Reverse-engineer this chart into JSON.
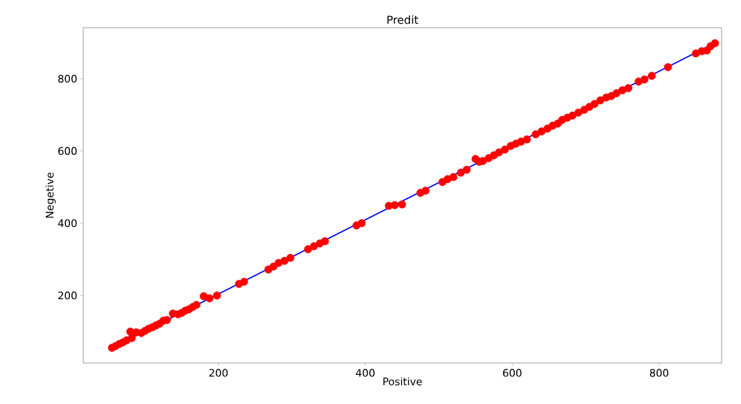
{
  "chart_data": {
    "type": "scatter",
    "title": "Predit",
    "xlabel": "Positive",
    "ylabel": "Negetive",
    "xlim": [
      16,
      885
    ],
    "ylim": [
      13,
      941
    ],
    "xticks": [
      200,
      400,
      600,
      800
    ],
    "yticks": [
      200,
      400,
      600,
      800
    ],
    "grid": false,
    "series": [
      {
        "marker": "circle",
        "color": "#ff0000",
        "x": [
          55,
          60,
          65,
          70,
          75,
          80,
          82,
          88,
          95,
          100,
          105,
          110,
          115,
          120,
          125,
          130,
          138,
          145,
          150,
          155,
          160,
          165,
          170,
          180,
          188,
          198,
          228,
          235,
          268,
          275,
          282,
          290,
          298,
          322,
          330,
          338,
          345,
          388,
          395,
          432,
          440,
          450,
          475,
          482,
          505,
          512,
          520,
          530,
          538,
          550,
          555,
          560,
          568,
          575,
          582,
          590,
          598,
          605,
          612,
          620,
          632,
          640,
          648,
          655,
          662,
          668,
          675,
          682,
          690,
          698,
          705,
          712,
          720,
          728,
          735,
          742,
          750,
          758,
          772,
          780,
          790,
          812,
          850,
          858,
          865,
          870,
          876
        ],
        "values": [
          55,
          60,
          66,
          70,
          76,
          100,
          82,
          98,
          96,
          102,
          108,
          112,
          117,
          122,
          130,
          132,
          150,
          148,
          152,
          158,
          162,
          168,
          174,
          198,
          192,
          200,
          232,
          238,
          272,
          280,
          290,
          296,
          304,
          328,
          336,
          344,
          350,
          394,
          400,
          448,
          450,
          452,
          484,
          490,
          514,
          522,
          528,
          540,
          548,
          578,
          570,
          572,
          580,
          588,
          596,
          604,
          614,
          620,
          626,
          632,
          646,
          654,
          662,
          670,
          676,
          686,
          692,
          698,
          706,
          714,
          722,
          730,
          740,
          748,
          752,
          760,
          768,
          774,
          792,
          798,
          808,
          832,
          870,
          876,
          878,
          890,
          898
        ]
      },
      {
        "type": "line",
        "marker": "none",
        "color": "#0000ff",
        "x": [
          55,
          876
        ],
        "values": [
          55,
          899
        ]
      }
    ]
  }
}
